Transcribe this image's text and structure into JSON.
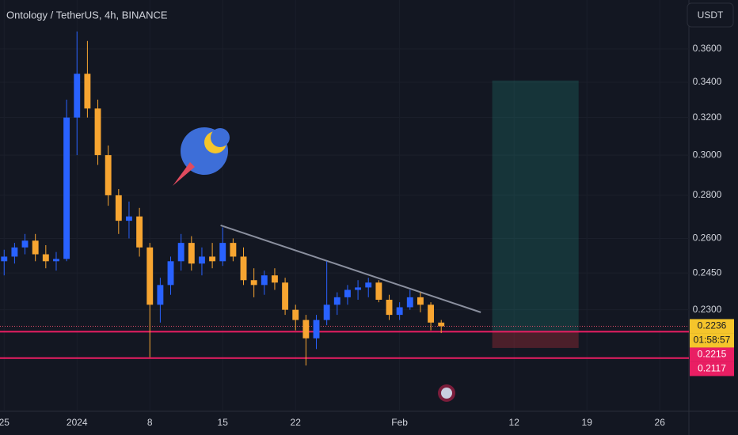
{
  "chart_data": {
    "type": "candlestick",
    "title": "Ontology / TetherUS, 4h, BINANCE",
    "currency": "USDT",
    "log_scale": true,
    "grid": true,
    "up_color": "#2962ff",
    "down_color": "#f7a531",
    "x": [
      0,
      1,
      2,
      3,
      4,
      5,
      6,
      7,
      8,
      9,
      10,
      11,
      12,
      13,
      14,
      15,
      16,
      17,
      18,
      19,
      20,
      21,
      22,
      23,
      24,
      25,
      26,
      27,
      28,
      29,
      30,
      31,
      32,
      33,
      34,
      35,
      36,
      37,
      38,
      39,
      40,
      41,
      42
    ],
    "open": [
      0.25,
      0.252,
      0.256,
      0.259,
      0.253,
      0.25,
      0.251,
      0.32,
      0.345,
      0.325,
      0.3,
      0.28,
      0.268,
      0.27,
      0.256,
      0.232,
      0.24,
      0.25,
      0.258,
      0.249,
      0.252,
      0.25,
      0.258,
      0.252,
      0.242,
      0.24,
      0.244,
      0.241,
      0.23,
      0.226,
      0.219,
      0.226,
      0.232,
      0.235,
      0.238,
      0.239,
      0.241,
      0.234,
      0.228,
      0.231,
      0.235,
      0.232,
      0.225
    ],
    "high": [
      0.255,
      0.258,
      0.262,
      0.262,
      0.257,
      0.254,
      0.33,
      0.371,
      0.365,
      0.33,
      0.305,
      0.283,
      0.277,
      0.274,
      0.258,
      0.243,
      0.252,
      0.262,
      0.261,
      0.256,
      0.258,
      0.265,
      0.26,
      0.256,
      0.247,
      0.246,
      0.247,
      0.243,
      0.232,
      0.228,
      0.228,
      0.25,
      0.237,
      0.24,
      0.242,
      0.243,
      0.242,
      0.236,
      0.233,
      0.238,
      0.237,
      0.233,
      0.226
    ],
    "low": [
      0.244,
      0.249,
      0.253,
      0.25,
      0.247,
      0.246,
      0.25,
      0.3,
      0.32,
      0.295,
      0.275,
      0.262,
      0.26,
      0.252,
      0.212,
      0.225,
      0.236,
      0.246,
      0.246,
      0.244,
      0.247,
      0.248,
      0.25,
      0.24,
      0.235,
      0.236,
      0.238,
      0.228,
      0.222,
      0.209,
      0.215,
      0.224,
      0.228,
      0.232,
      0.234,
      0.235,
      0.233,
      0.226,
      0.226,
      0.23,
      0.229,
      0.222,
      0.221
    ],
    "close": [
      0.252,
      0.256,
      0.259,
      0.253,
      0.25,
      0.251,
      0.32,
      0.345,
      0.325,
      0.3,
      0.28,
      0.268,
      0.27,
      0.256,
      0.232,
      0.24,
      0.25,
      0.258,
      0.249,
      0.252,
      0.25,
      0.258,
      0.252,
      0.242,
      0.24,
      0.244,
      0.241,
      0.23,
      0.226,
      0.219,
      0.226,
      0.232,
      0.235,
      0.238,
      0.239,
      0.241,
      0.234,
      0.228,
      0.231,
      0.235,
      0.232,
      0.225,
      0.2236
    ],
    "xlim": [
      -0.4,
      65.8
    ],
    "ylim": [
      0.1932,
      0.3916
    ],
    "yticks": [
      {
        "value": 0.36,
        "label": "0.3600"
      },
      {
        "value": 0.34,
        "label": "0.3400"
      },
      {
        "value": 0.32,
        "label": "0.3200"
      },
      {
        "value": 0.3,
        "label": "0.3000"
      },
      {
        "value": 0.28,
        "label": "0.2800"
      },
      {
        "value": 0.26,
        "label": "0.2600"
      },
      {
        "value": 0.245,
        "label": "0.2450"
      },
      {
        "value": 0.23,
        "label": "0.2300"
      }
    ],
    "xticks": [
      {
        "value": 0,
        "label": "25"
      },
      {
        "value": 7,
        "label": "2024"
      },
      {
        "value": 14,
        "label": "8"
      },
      {
        "value": 21,
        "label": "15"
      },
      {
        "value": 28,
        "label": "22"
      },
      {
        "value": 38,
        "label": "Feb"
      },
      {
        "value": 49,
        "label": "12"
      },
      {
        "value": 56,
        "label": "19"
      },
      {
        "value": 63,
        "label": "26"
      }
    ],
    "trendline": {
      "x": [
        20.8,
        45.8
      ],
      "y": [
        0.2659,
        0.229
      ],
      "color": "#8a8f9e"
    },
    "hlines": {
      "values": [
        0.2215,
        0.2117
      ],
      "value_labels": [
        "0.2215",
        "0.2117"
      ],
      "color": "#e91e63"
    },
    "last_price": {
      "value": 0.2236,
      "label": "0.2236",
      "countdown": "01:58:57",
      "color": "#f5c52b"
    },
    "long_position": {
      "x": [
        46.9,
        55.2
      ],
      "target": 0.341,
      "entry": 0.2215,
      "stop": 0.2154
    }
  }
}
